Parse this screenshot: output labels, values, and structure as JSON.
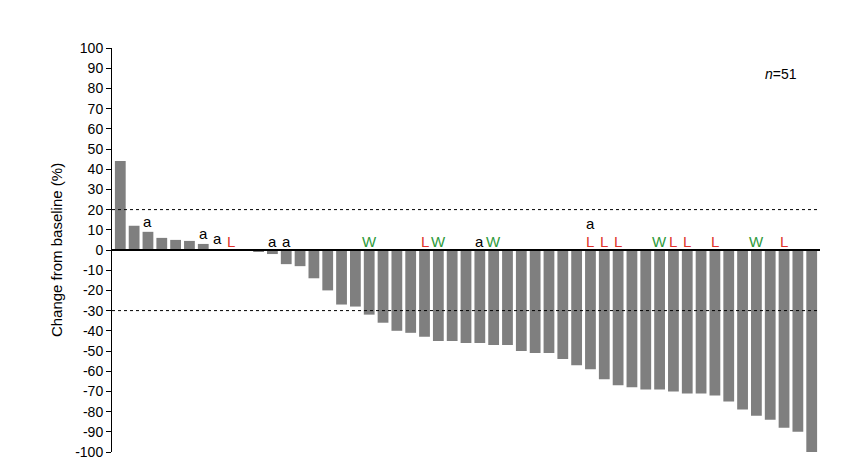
{
  "chart_data": {
    "type": "bar",
    "y_label": "Change from baseline (%)",
    "note": "n=51",
    "values": [
      44,
      12,
      9,
      6,
      5,
      4.5,
      3,
      0.5,
      0,
      0,
      -1,
      -2,
      -7,
      -8,
      -14,
      -20,
      -27,
      -28,
      -32,
      -36,
      -40,
      -41,
      -43,
      -45,
      -45,
      -46,
      -46,
      -47,
      -47,
      -50,
      -51,
      -51,
      -54,
      -57,
      -59,
      -64,
      -67,
      -68,
      -69,
      -69,
      -70,
      -71,
      -71,
      -72,
      -75,
      -79,
      -82,
      -84,
      -88,
      -90,
      -100
    ],
    "color": "#7f7f7f",
    "ylim": [
      -100,
      100
    ],
    "yticks": [
      -100,
      -90,
      -80,
      -70,
      -60,
      -50,
      -40,
      -30,
      -20,
      -10,
      0,
      10,
      20,
      30,
      40,
      50,
      60,
      70,
      80,
      90,
      100
    ],
    "reference_lines": [
      20,
      -30
    ],
    "grid": false,
    "tick_labels": "y",
    "annotations": [
      {
        "index": 2,
        "text": "a",
        "y": 9,
        "color": "#000000"
      },
      {
        "index": 6,
        "text": "a",
        "y": 3,
        "color": "#000000"
      },
      {
        "index": 7,
        "text": "a",
        "y": 0.5,
        "color": "#000000"
      },
      {
        "index": 8,
        "text": "L",
        "y": 0,
        "color": "#e0322b"
      },
      {
        "index": 11,
        "text": "a",
        "y": 0,
        "color": "#000000"
      },
      {
        "index": 12,
        "text": "a",
        "y": 0,
        "color": "#000000"
      },
      {
        "index": 18,
        "text": "W",
        "y": 0,
        "color": "#2e9a3a"
      },
      {
        "index": 22,
        "text": "L",
        "y": 0,
        "color": "#e0322b"
      },
      {
        "index": 23,
        "text": "W",
        "y": 0,
        "color": "#2e9a3a"
      },
      {
        "index": 26,
        "text": "a",
        "y": 0,
        "color": "#000000"
      },
      {
        "index": 27,
        "text": "W",
        "y": 0,
        "color": "#2e9a3a"
      },
      {
        "index": 34,
        "text": "a",
        "y": 8,
        "color": "#000000"
      },
      {
        "index": 34,
        "text": "L",
        "y": 0,
        "color": "#e0322b"
      },
      {
        "index": 35,
        "text": "L",
        "y": 0,
        "color": "#e0322b"
      },
      {
        "index": 36,
        "text": "L",
        "y": 0,
        "color": "#e0322b"
      },
      {
        "index": 39,
        "text": "W",
        "y": 0,
        "color": "#2e9a3a"
      },
      {
        "index": 40,
        "text": "L",
        "y": 0,
        "color": "#e0322b"
      },
      {
        "index": 41,
        "text": "L",
        "y": 0,
        "color": "#e0322b"
      },
      {
        "index": 43,
        "text": "L",
        "y": 0,
        "color": "#e0322b"
      },
      {
        "index": 46,
        "text": "W",
        "y": 0,
        "color": "#2e9a3a"
      },
      {
        "index": 48,
        "text": "L",
        "y": 0,
        "color": "#e0322b"
      }
    ]
  }
}
